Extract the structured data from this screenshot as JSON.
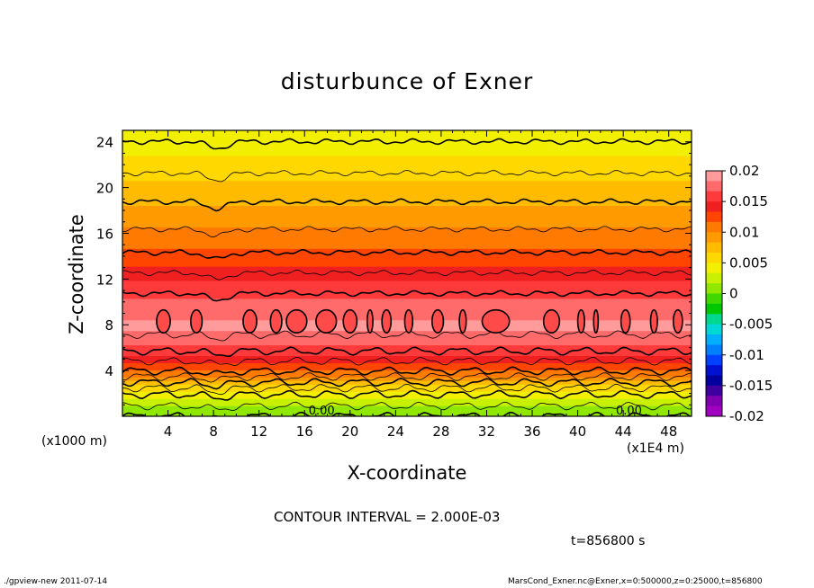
{
  "footer": {
    "left": "./gpview-new  2011-07-14",
    "right": "MarsCond_Exner.nc@Exner,x=0:500000,z=0:25000,t=856800"
  },
  "chart_data": {
    "type": "heatmap",
    "title": "disturbunce of Exner",
    "xlabel": "X-coordinate",
    "ylabel": "Z-coordinate",
    "x_unit": "(x1E4 m)",
    "z_unit": "(x1000 m)",
    "xlim": [
      0,
      50
    ],
    "ylim": [
      0,
      25
    ],
    "x_ticks": [
      4,
      8,
      12,
      16,
      20,
      24,
      28,
      32,
      36,
      40,
      44,
      48
    ],
    "y_ticks": [
      4,
      8,
      12,
      16,
      20,
      24
    ],
    "contour_interval_text": "CONTOUR INTERVAL = 2.000E-03",
    "time_text": "t=856800 s",
    "contour_labels": [
      "0.00",
      "0.00"
    ],
    "colorbar": {
      "levels": [
        0.02,
        0.015,
        0.01,
        0.005,
        0,
        -0.005,
        -0.01,
        -0.015,
        -0.02
      ],
      "colors": [
        "#ff9b9b",
        "#ff6a6a",
        "#ff3a3a",
        "#f02020",
        "#ff4500",
        "#ff7a00",
        "#ff9a00",
        "#ffbb00",
        "#ffd800",
        "#f2f000",
        "#c8f000",
        "#90e800",
        "#40d800",
        "#00c800",
        "#00d890",
        "#00d8d8",
        "#00b0ff",
        "#0080ff",
        "#0040ff",
        "#0010d0",
        "#0000a0",
        "#4000a0",
        "#8000b0",
        "#a000c0"
      ]
    },
    "profile_z": [
      0,
      2,
      4,
      6,
      8,
      10,
      12,
      14,
      16,
      18,
      20,
      22,
      24,
      25
    ],
    "profile_value": [
      0.0,
      0.004,
      0.012,
      0.0165,
      0.0188,
      0.017,
      0.0148,
      0.0125,
      0.0105,
      0.0088,
      0.0072,
      0.0056,
      0.0042,
      0.0036
    ]
  }
}
